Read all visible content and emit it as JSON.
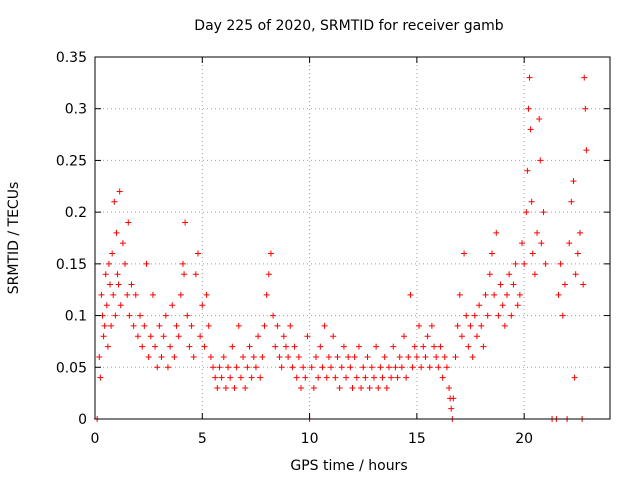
{
  "chart_data": {
    "type": "scatter",
    "title": "Day 225 of 2020, SRMTID for receiver gamb",
    "xlabel": "GPS time / hours",
    "ylabel": "SRMTID / TECUs",
    "xlim": [
      0,
      24
    ],
    "ylim": [
      0,
      0.35
    ],
    "x_ticks": [
      0,
      5,
      10,
      15,
      20
    ],
    "x_tick_labels": [
      "0",
      "5",
      "10",
      "15",
      "20"
    ],
    "y_ticks": [
      0,
      0.05,
      0.1,
      0.15,
      0.2,
      0.25,
      0.3,
      0.35
    ],
    "y_tick_labels": [
      "0",
      "0.05",
      "0.1",
      "0.15",
      "0.2",
      "0.25",
      "0.3",
      "0.35"
    ],
    "grid": true,
    "marker": "+",
    "color": "#ff0000",
    "series": [
      {
        "name": "SRMTID",
        "points": [
          [
            0.1,
            0.0
          ],
          [
            0.2,
            0.06
          ],
          [
            0.25,
            0.04
          ],
          [
            0.3,
            0.12
          ],
          [
            0.35,
            0.1
          ],
          [
            0.4,
            0.08
          ],
          [
            0.45,
            0.09
          ],
          [
            0.5,
            0.14
          ],
          [
            0.55,
            0.11
          ],
          [
            0.6,
            0.07
          ],
          [
            0.65,
            0.15
          ],
          [
            0.7,
            0.13
          ],
          [
            0.75,
            0.09
          ],
          [
            0.8,
            0.16
          ],
          [
            0.85,
            0.12
          ],
          [
            0.9,
            0.21
          ],
          [
            0.95,
            0.1
          ],
          [
            1.0,
            0.18
          ],
          [
            1.05,
            0.14
          ],
          [
            1.1,
            0.13
          ],
          [
            1.15,
            0.22
          ],
          [
            1.2,
            0.11
          ],
          [
            1.3,
            0.17
          ],
          [
            1.4,
            0.15
          ],
          [
            1.5,
            0.12
          ],
          [
            1.55,
            0.19
          ],
          [
            1.6,
            0.1
          ],
          [
            1.7,
            0.13
          ],
          [
            1.8,
            0.09
          ],
          [
            1.9,
            0.12
          ],
          [
            2.0,
            0.08
          ],
          [
            2.1,
            0.1
          ],
          [
            2.2,
            0.07
          ],
          [
            2.3,
            0.09
          ],
          [
            2.4,
            0.15
          ],
          [
            2.5,
            0.06
          ],
          [
            2.6,
            0.08
          ],
          [
            2.7,
            0.12
          ],
          [
            2.8,
            0.07
          ],
          [
            2.9,
            0.05
          ],
          [
            3.0,
            0.09
          ],
          [
            3.1,
            0.06
          ],
          [
            3.2,
            0.08
          ],
          [
            3.3,
            0.1
          ],
          [
            3.4,
            0.05
          ],
          [
            3.5,
            0.07
          ],
          [
            3.6,
            0.11
          ],
          [
            3.7,
            0.06
          ],
          [
            3.8,
            0.09
          ],
          [
            3.9,
            0.08
          ],
          [
            4.0,
            0.12
          ],
          [
            4.1,
            0.15
          ],
          [
            4.15,
            0.14
          ],
          [
            4.2,
            0.19
          ],
          [
            4.3,
            0.1
          ],
          [
            4.4,
            0.07
          ],
          [
            4.5,
            0.09
          ],
          [
            4.6,
            0.06
          ],
          [
            4.7,
            0.14
          ],
          [
            4.8,
            0.16
          ],
          [
            4.9,
            0.08
          ],
          [
            5.0,
            0.11
          ],
          [
            5.1,
            0.07
          ],
          [
            5.2,
            0.12
          ],
          [
            5.3,
            0.09
          ],
          [
            5.4,
            0.06
          ],
          [
            5.5,
            0.05
          ],
          [
            5.6,
            0.04
          ],
          [
            5.7,
            0.03
          ],
          [
            5.8,
            0.05
          ],
          [
            5.9,
            0.04
          ],
          [
            6.0,
            0.06
          ],
          [
            6.1,
            0.03
          ],
          [
            6.2,
            0.05
          ],
          [
            6.3,
            0.04
          ],
          [
            6.4,
            0.07
          ],
          [
            6.5,
            0.03
          ],
          [
            6.6,
            0.05
          ],
          [
            6.7,
            0.09
          ],
          [
            6.8,
            0.04
          ],
          [
            6.9,
            0.06
          ],
          [
            7.0,
            0.03
          ],
          [
            7.1,
            0.05
          ],
          [
            7.2,
            0.07
          ],
          [
            7.3,
            0.04
          ],
          [
            7.4,
            0.06
          ],
          [
            7.5,
            0.05
          ],
          [
            7.6,
            0.08
          ],
          [
            7.7,
            0.04
          ],
          [
            7.8,
            0.06
          ],
          [
            7.9,
            0.09
          ],
          [
            8.0,
            0.12
          ],
          [
            8.1,
            0.14
          ],
          [
            8.2,
            0.16
          ],
          [
            8.3,
            0.1
          ],
          [
            8.4,
            0.07
          ],
          [
            8.5,
            0.09
          ],
          [
            8.6,
            0.06
          ],
          [
            8.7,
            0.05
          ],
          [
            8.8,
            0.08
          ],
          [
            8.9,
            0.07
          ],
          [
            9.0,
            0.06
          ],
          [
            9.1,
            0.09
          ],
          [
            9.2,
            0.05
          ],
          [
            9.3,
            0.07
          ],
          [
            9.4,
            0.04
          ],
          [
            9.5,
            0.06
          ],
          [
            9.6,
            0.03
          ],
          [
            9.7,
            0.05
          ],
          [
            9.8,
            0.04
          ],
          [
            9.9,
            0.08
          ],
          [
            10.0,
            0.0
          ],
          [
            10.1,
            0.05
          ],
          [
            10.2,
            0.03
          ],
          [
            10.3,
            0.06
          ],
          [
            10.4,
            0.04
          ],
          [
            10.5,
            0.07
          ],
          [
            10.6,
            0.05
          ],
          [
            10.7,
            0.09
          ],
          [
            10.8,
            0.04
          ],
          [
            10.9,
            0.06
          ],
          [
            11.0,
            0.05
          ],
          [
            11.1,
            0.08
          ],
          [
            11.2,
            0.04
          ],
          [
            11.3,
            0.06
          ],
          [
            11.4,
            0.03
          ],
          [
            11.5,
            0.05
          ],
          [
            11.6,
            0.07
          ],
          [
            11.7,
            0.04
          ],
          [
            11.8,
            0.06
          ],
          [
            11.9,
            0.05
          ],
          [
            12.0,
            0.03
          ],
          [
            12.1,
            0.06
          ],
          [
            12.2,
            0.04
          ],
          [
            12.3,
            0.07
          ],
          [
            12.4,
            0.03
          ],
          [
            12.5,
            0.05
          ],
          [
            12.6,
            0.04
          ],
          [
            12.7,
            0.06
          ],
          [
            12.8,
            0.03
          ],
          [
            12.9,
            0.05
          ],
          [
            13.0,
            0.04
          ],
          [
            13.1,
            0.07
          ],
          [
            13.2,
            0.03
          ],
          [
            13.3,
            0.05
          ],
          [
            13.4,
            0.04
          ],
          [
            13.5,
            0.06
          ],
          [
            13.6,
            0.03
          ],
          [
            13.7,
            0.05
          ],
          [
            13.8,
            0.04
          ],
          [
            13.9,
            0.07
          ],
          [
            14.0,
            0.05
          ],
          [
            14.1,
            0.04
          ],
          [
            14.2,
            0.06
          ],
          [
            14.3,
            0.05
          ],
          [
            14.4,
            0.08
          ],
          [
            14.5,
            0.04
          ],
          [
            14.6,
            0.06
          ],
          [
            14.7,
            0.12
          ],
          [
            14.8,
            0.05
          ],
          [
            14.9,
            0.07
          ],
          [
            15.0,
            0.06
          ],
          [
            15.1,
            0.09
          ],
          [
            15.2,
            0.05
          ],
          [
            15.3,
            0.07
          ],
          [
            15.4,
            0.06
          ],
          [
            15.5,
            0.08
          ],
          [
            15.6,
            0.05
          ],
          [
            15.7,
            0.09
          ],
          [
            15.8,
            0.07
          ],
          [
            15.9,
            0.06
          ],
          [
            16.0,
            0.05
          ],
          [
            16.1,
            0.07
          ],
          [
            16.2,
            0.04
          ],
          [
            16.3,
            0.06
          ],
          [
            16.4,
            0.05
          ],
          [
            16.5,
            0.03
          ],
          [
            16.55,
            0.02
          ],
          [
            16.6,
            0.01
          ],
          [
            16.65,
            0.0
          ],
          [
            16.7,
            0.02
          ],
          [
            16.8,
            0.06
          ],
          [
            16.9,
            0.09
          ],
          [
            17.0,
            0.12
          ],
          [
            17.1,
            0.08
          ],
          [
            17.2,
            0.16
          ],
          [
            17.3,
            0.1
          ],
          [
            17.4,
            0.07
          ],
          [
            17.5,
            0.09
          ],
          [
            17.6,
            0.06
          ],
          [
            17.7,
            0.1
          ],
          [
            17.8,
            0.08
          ],
          [
            17.9,
            0.11
          ],
          [
            18.0,
            0.09
          ],
          [
            18.1,
            0.07
          ],
          [
            18.2,
            0.12
          ],
          [
            18.3,
            0.1
          ],
          [
            18.4,
            0.14
          ],
          [
            18.5,
            0.16
          ],
          [
            18.6,
            0.12
          ],
          [
            18.7,
            0.18
          ],
          [
            18.8,
            0.1
          ],
          [
            18.9,
            0.13
          ],
          [
            19.0,
            0.11
          ],
          [
            19.1,
            0.09
          ],
          [
            19.2,
            0.12
          ],
          [
            19.3,
            0.14
          ],
          [
            19.4,
            0.1
          ],
          [
            19.5,
            0.13
          ],
          [
            19.6,
            0.15
          ],
          [
            19.7,
            0.11
          ],
          [
            19.8,
            0.12
          ],
          [
            19.9,
            0.17
          ],
          [
            20.0,
            0.15
          ],
          [
            20.1,
            0.2
          ],
          [
            20.15,
            0.24
          ],
          [
            20.2,
            0.3
          ],
          [
            20.25,
            0.33
          ],
          [
            20.3,
            0.28
          ],
          [
            20.35,
            0.21
          ],
          [
            20.4,
            0.16
          ],
          [
            20.5,
            0.14
          ],
          [
            20.6,
            0.18
          ],
          [
            20.7,
            0.29
          ],
          [
            20.75,
            0.25
          ],
          [
            20.8,
            0.17
          ],
          [
            20.9,
            0.2
          ],
          [
            21.0,
            0.15
          ],
          [
            21.3,
            0.0
          ],
          [
            21.5,
            0.0
          ],
          [
            21.6,
            0.12
          ],
          [
            21.7,
            0.15
          ],
          [
            21.8,
            0.1
          ],
          [
            21.9,
            0.13
          ],
          [
            22.0,
            0.0
          ],
          [
            22.1,
            0.17
          ],
          [
            22.2,
            0.21
          ],
          [
            22.3,
            0.23
          ],
          [
            22.35,
            0.04
          ],
          [
            22.4,
            0.14
          ],
          [
            22.5,
            0.16
          ],
          [
            22.6,
            0.18
          ],
          [
            22.7,
            0.0
          ],
          [
            22.75,
            0.13
          ],
          [
            22.8,
            0.33
          ],
          [
            22.85,
            0.3
          ],
          [
            22.9,
            0.26
          ]
        ]
      }
    ]
  }
}
